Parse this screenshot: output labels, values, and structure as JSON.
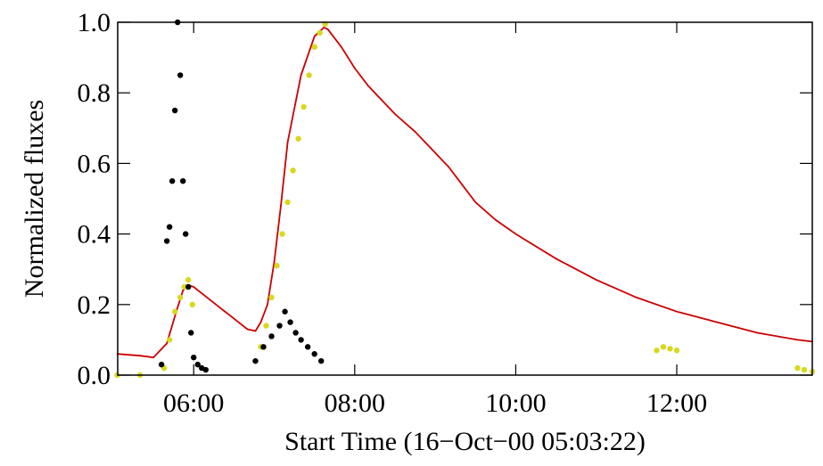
{
  "chart_data": {
    "type": "line",
    "title": "",
    "xlabel": "Start Time (16−Oct−00 05:03:22)",
    "ylabel": "Normalized fluxes",
    "xlim": [
      "05:03:22",
      "13:41:00"
    ],
    "ylim": [
      0.0,
      1.0
    ],
    "x_ticks": [
      "06:00",
      "08:00",
      "10:00",
      "12:00"
    ],
    "y_ticks": [
      "0.0",
      "0.2",
      "0.4",
      "0.6",
      "0.8",
      "1.0"
    ],
    "grid": false,
    "legend": "none",
    "series": [
      {
        "color": "#cc0000",
        "style": "line",
        "x": [
          "05:03",
          "05:20",
          "05:30",
          "05:40",
          "05:47",
          "05:52",
          "05:56",
          "06:00",
          "06:10",
          "06:20",
          "06:30",
          "06:40",
          "06:46",
          "06:50",
          "06:55",
          "07:00",
          "07:05",
          "07:10",
          "07:20",
          "07:30",
          "07:37",
          "07:40",
          "07:50",
          "08:00",
          "08:10",
          "08:20",
          "08:30",
          "08:45",
          "09:00",
          "09:10",
          "09:20",
          "09:30",
          "09:45",
          "10:00",
          "10:30",
          "11:00",
          "11:30",
          "12:00",
          "12:30",
          "13:00",
          "13:30",
          "13:41"
        ],
        "y": [
          0.06,
          0.055,
          0.05,
          0.09,
          0.18,
          0.24,
          0.255,
          0.25,
          0.22,
          0.19,
          0.16,
          0.13,
          0.125,
          0.15,
          0.2,
          0.32,
          0.48,
          0.66,
          0.85,
          0.96,
          0.985,
          0.98,
          0.93,
          0.87,
          0.82,
          0.78,
          0.74,
          0.69,
          0.63,
          0.59,
          0.54,
          0.49,
          0.44,
          0.4,
          0.33,
          0.27,
          0.22,
          0.18,
          0.15,
          0.12,
          0.1,
          0.095
        ]
      },
      {
        "color": "#d8d820",
        "style": "points",
        "x": [
          "05:03",
          "05:20",
          "05:38",
          "05:42",
          "05:46",
          "05:50",
          "05:53",
          "05:56",
          "05:59",
          "06:50",
          "06:54",
          "06:58",
          "07:02",
          "07:06",
          "07:10",
          "07:14",
          "07:18",
          "07:22",
          "07:26",
          "07:30",
          "07:34",
          "07:38",
          "11:45",
          "11:50",
          "11:55",
          "12:00",
          "13:30",
          "13:35",
          "13:41"
        ],
        "y": [
          0.0,
          0.0,
          0.02,
          0.1,
          0.18,
          0.22,
          0.25,
          0.27,
          0.2,
          0.08,
          0.14,
          0.22,
          0.31,
          0.4,
          0.49,
          0.58,
          0.67,
          0.76,
          0.85,
          0.93,
          0.97,
          0.995,
          0.07,
          0.08,
          0.075,
          0.07,
          0.02,
          0.015,
          0.01
        ]
      },
      {
        "color": "#000000",
        "style": "points",
        "x": [
          "05:36",
          "05:40",
          "05:42",
          "05:44",
          "05:46",
          "05:48",
          "05:50",
          "05:52",
          "05:54",
          "05:56",
          "05:58",
          "06:00",
          "06:03",
          "06:06",
          "06:09",
          "06:46",
          "06:52",
          "06:58",
          "07:04",
          "07:08",
          "07:12",
          "07:16",
          "07:20",
          "07:25",
          "07:30",
          "07:35"
        ],
        "y": [
          0.03,
          0.38,
          0.42,
          0.55,
          0.75,
          1.0,
          0.85,
          0.55,
          0.4,
          0.25,
          0.12,
          0.05,
          0.03,
          0.02,
          0.015,
          0.04,
          0.08,
          0.11,
          0.14,
          0.18,
          0.15,
          0.12,
          0.1,
          0.08,
          0.06,
          0.04
        ]
      }
    ]
  }
}
